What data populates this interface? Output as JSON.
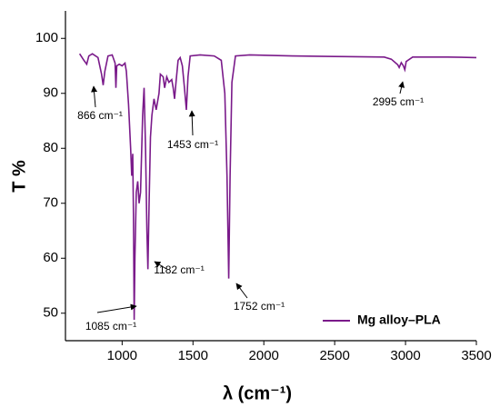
{
  "chart_data": {
    "type": "line",
    "xlabel": "λ (cm⁻¹)",
    "ylabel": "T %",
    "xlim": [
      600,
      3500
    ],
    "ylim": [
      45,
      105
    ],
    "xticks": [
      1000,
      1500,
      2000,
      2500,
      3000,
      3500
    ],
    "yticks": [
      50,
      60,
      70,
      80,
      90,
      100
    ],
    "legend": "bottom-right",
    "annotations": [
      "866 cm⁻¹",
      "1453 cm⁻¹",
      "2995 cm⁻¹",
      "1182 cm⁻¹",
      "1752 cm⁻¹",
      "1085 cm⁻¹"
    ],
    "series": [
      {
        "name": "Mg alloy–PLA",
        "color": "#7a1a8a",
        "x": [
          700,
          730,
          750,
          765,
          790,
          830,
          855,
          866,
          878,
          900,
          930,
          950,
          956,
          962,
          980,
          1000,
          1020,
          1030,
          1045,
          1060,
          1068,
          1075,
          1080,
          1085,
          1090,
          1100,
          1110,
          1120,
          1130,
          1145,
          1155,
          1165,
          1175,
          1182,
          1190,
          1200,
          1210,
          1225,
          1240,
          1260,
          1270,
          1290,
          1300,
          1315,
          1330,
          1350,
          1360,
          1370,
          1380,
          1395,
          1410,
          1425,
          1440,
          1453,
          1465,
          1480,
          1550,
          1650,
          1700,
          1725,
          1740,
          1752,
          1762,
          1775,
          1800,
          1900,
          2200,
          2500,
          2850,
          2900,
          2945,
          2955,
          2970,
          2985,
          2995,
          3005,
          3050,
          3300,
          3500
        ],
        "values": [
          97.2,
          96,
          95.3,
          96.8,
          97.2,
          96.5,
          93.5,
          91.5,
          94,
          96.8,
          97,
          95.5,
          91,
          95,
          95.3,
          95,
          95.5,
          94,
          88,
          80,
          75,
          79,
          68,
          48.8,
          60,
          72,
          74,
          70,
          72,
          86,
          91,
          80,
          65,
          58,
          70,
          82,
          86,
          89,
          87,
          90,
          93.5,
          93,
          91,
          93,
          92,
          92.5,
          91,
          89,
          92,
          96,
          96.5,
          95,
          91,
          87,
          93,
          96.8,
          97,
          96.8,
          96,
          90,
          75,
          56.3,
          75,
          92,
          96.8,
          97,
          96.8,
          96.7,
          96.6,
          96.2,
          95.2,
          94.7,
          95.6,
          95,
          94.3,
          95.8,
          96.6,
          96.6,
          96.5
        ]
      }
    ]
  }
}
